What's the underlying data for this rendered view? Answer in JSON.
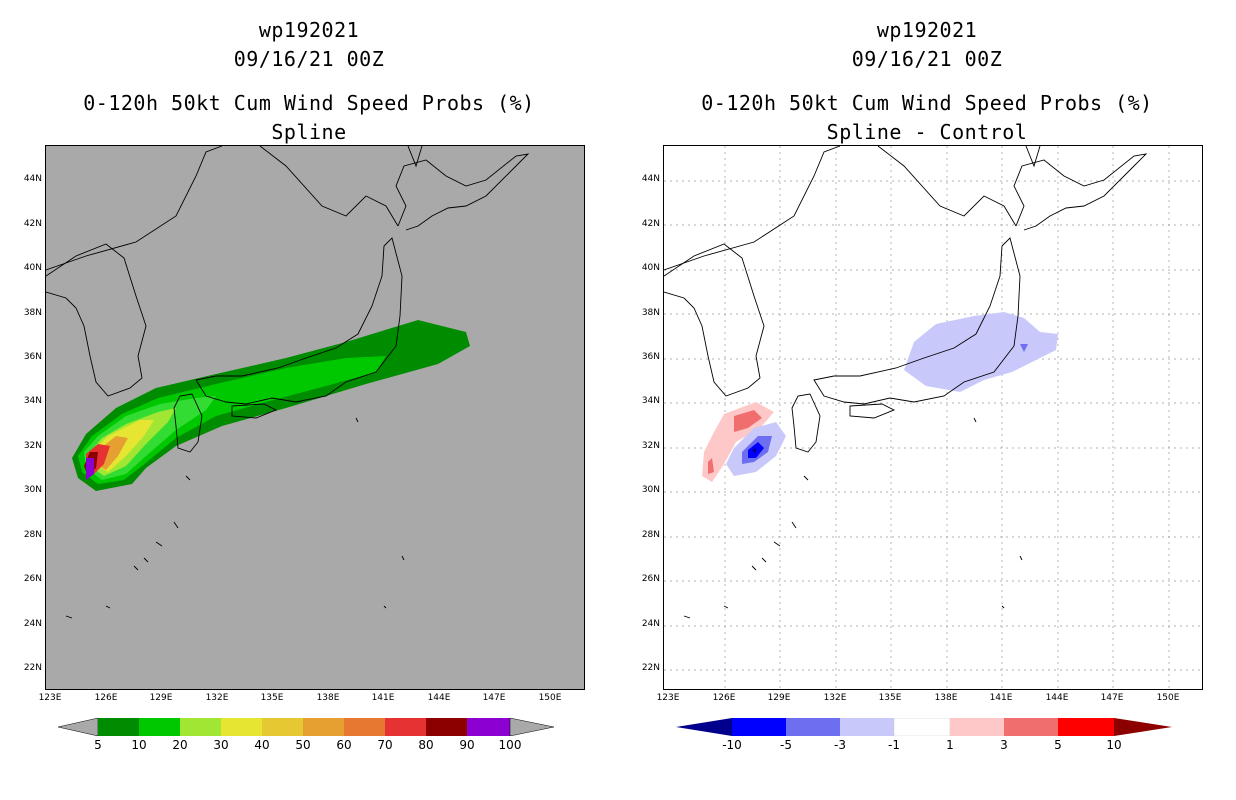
{
  "left_panel": {
    "title_line1": "wp192021",
    "title_line2": "09/16/21 00Z",
    "title_line3": "0-120h 50kt Cum Wind Speed Probs (%)",
    "title_line4": "Spline",
    "background_color": "#a9a9a9",
    "lat_labels": [
      "44N",
      "42N",
      "40N",
      "38N",
      "36N",
      "34N",
      "32N",
      "30N",
      "28N",
      "26N",
      "24N",
      "22N"
    ],
    "lon_labels": [
      "123E",
      "126E",
      "129E",
      "132E",
      "135E",
      "138E",
      "141E",
      "144E",
      "147E",
      "150E"
    ],
    "colorbar": {
      "colors": [
        "#008c00",
        "#00c800",
        "#32dc32",
        "#a0e632",
        "#e6e632",
        "#e6c832",
        "#e6a032",
        "#e67832",
        "#e63232",
        "#8c0000",
        "#8c00d2"
      ],
      "labels": [
        "5",
        "10",
        "20",
        "30",
        "40",
        "50",
        "60",
        "70",
        "80",
        "90",
        "100"
      ]
    }
  },
  "right_panel": {
    "title_line1": "wp192021",
    "title_line2": "09/16/21 00Z",
    "title_line3": "0-120h 50kt Cum Wind Speed Probs (%)",
    "title_line4": "Spline - Control",
    "background_color": "#ffffff",
    "lat_labels": [
      "44N",
      "42N",
      "40N",
      "38N",
      "36N",
      "34N",
      "32N",
      "30N",
      "28N",
      "26N",
      "24N",
      "22N"
    ],
    "lon_labels": [
      "123E",
      "126E",
      "129E",
      "132E",
      "135E",
      "138E",
      "141E",
      "144E",
      "147E",
      "150E"
    ],
    "colorbar": {
      "colors": [
        "#00008c",
        "#0000ff",
        "#6e6ef0",
        "#c8c8fa",
        "#ffffff",
        "#ffc8c8",
        "#f06e6e",
        "#ff0000",
        "#8c0000"
      ],
      "labels": [
        "-10",
        "-5",
        "-3",
        "-1",
        "1",
        "3",
        "5",
        "10"
      ]
    }
  }
}
